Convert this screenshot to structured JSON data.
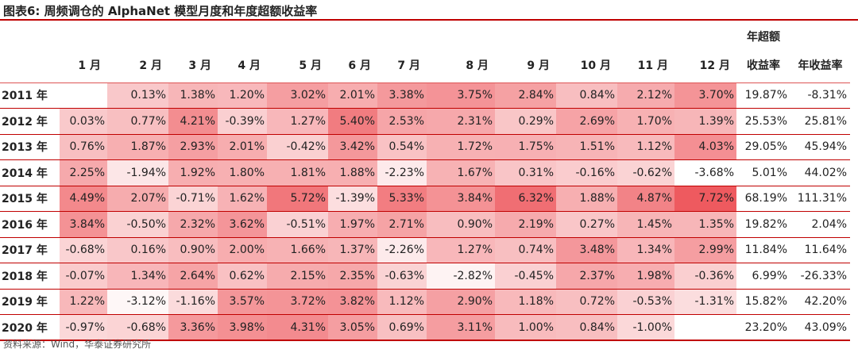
{
  "title": "图表6:   周频调仓的 AlphaNet 模型月度和年度超额收益率",
  "header": {
    "top_summary_label": "年超额",
    "columns": [
      "1 月",
      "2 月",
      "3 月",
      "4 月",
      "5 月",
      "6 月",
      "7 月",
      "8 月",
      "9 月",
      "10 月",
      "11 月",
      "12 月",
      "收益率",
      "年收益率"
    ]
  },
  "rows": [
    {
      "year": "2011 年",
      "months": [
        "",
        "0.13%",
        "1.38%",
        "1.20%",
        "3.02%",
        "2.01%",
        "3.38%",
        "3.75%",
        "2.84%",
        "0.84%",
        "2.12%",
        "3.70%"
      ],
      "excess": "19.87%",
      "annual": "-8.31%"
    },
    {
      "year": "2012 年",
      "months": [
        "0.03%",
        "0.77%",
        "4.21%",
        "-0.39%",
        "1.27%",
        "5.40%",
        "2.53%",
        "2.31%",
        "0.29%",
        "2.69%",
        "1.70%",
        "1.39%"
      ],
      "excess": "25.53%",
      "annual": "25.81%"
    },
    {
      "year": "2013 年",
      "months": [
        "0.76%",
        "1.87%",
        "2.93%",
        "2.01%",
        "-0.42%",
        "3.42%",
        "0.54%",
        "1.72%",
        "1.75%",
        "1.51%",
        "1.12%",
        "4.03%"
      ],
      "excess": "29.05%",
      "annual": "45.94%"
    },
    {
      "year": "2014 年",
      "months": [
        "2.25%",
        "-1.94%",
        "1.92%",
        "1.80%",
        "1.81%",
        "1.88%",
        "-2.23%",
        "1.67%",
        "0.31%",
        "-0.16%",
        "-0.62%",
        "-3.68%"
      ],
      "excess": "5.01%",
      "annual": "44.02%"
    },
    {
      "year": "2015 年",
      "months": [
        "4.49%",
        "2.07%",
        "-0.71%",
        "1.62%",
        "5.72%",
        "-1.39%",
        "5.33%",
        "3.84%",
        "6.32%",
        "1.88%",
        "4.87%",
        "7.72%"
      ],
      "excess": "68.19%",
      "annual": "111.31%"
    },
    {
      "year": "2016 年",
      "months": [
        "3.84%",
        "-0.50%",
        "2.32%",
        "3.62%",
        "-0.51%",
        "1.97%",
        "2.71%",
        "0.90%",
        "2.19%",
        "0.27%",
        "1.45%",
        "1.35%"
      ],
      "excess": "19.82%",
      "annual": "2.04%"
    },
    {
      "year": "2017 年",
      "months": [
        "-0.68%",
        "0.16%",
        "0.90%",
        "2.00%",
        "1.66%",
        "1.37%",
        "-2.26%",
        "1.27%",
        "0.74%",
        "3.48%",
        "1.34%",
        "2.99%"
      ],
      "excess": "11.84%",
      "annual": "11.64%"
    },
    {
      "year": "2018 年",
      "months": [
        "-0.07%",
        "1.34%",
        "2.64%",
        "0.62%",
        "2.15%",
        "2.35%",
        "-0.63%",
        "-2.82%",
        "-0.45%",
        "2.37%",
        "1.98%",
        "-0.36%"
      ],
      "excess": "6.99%",
      "annual": "-26.33%"
    },
    {
      "year": "2019 年",
      "months": [
        "1.22%",
        "-3.12%",
        "-1.16%",
        "3.57%",
        "3.72%",
        "3.82%",
        "1.12%",
        "2.90%",
        "1.18%",
        "0.72%",
        "-0.53%",
        "-1.31%"
      ],
      "excess": "15.82%",
      "annual": "42.20%"
    },
    {
      "year": "2020 年",
      "months": [
        "-0.97%",
        "-0.68%",
        "3.36%",
        "3.98%",
        "4.31%",
        "3.05%",
        "0.69%",
        "3.11%",
        "1.00%",
        "0.84%",
        "-1.00%",
        ""
      ],
      "excess": "23.20%",
      "annual": "43.09%"
    }
  ],
  "source": "资料来源：Wind，华泰证券研究所",
  "colors": {
    "heat_max": "#ee5a5f",
    "heat_min": "#ffffff",
    "rule": "#c00000"
  }
}
